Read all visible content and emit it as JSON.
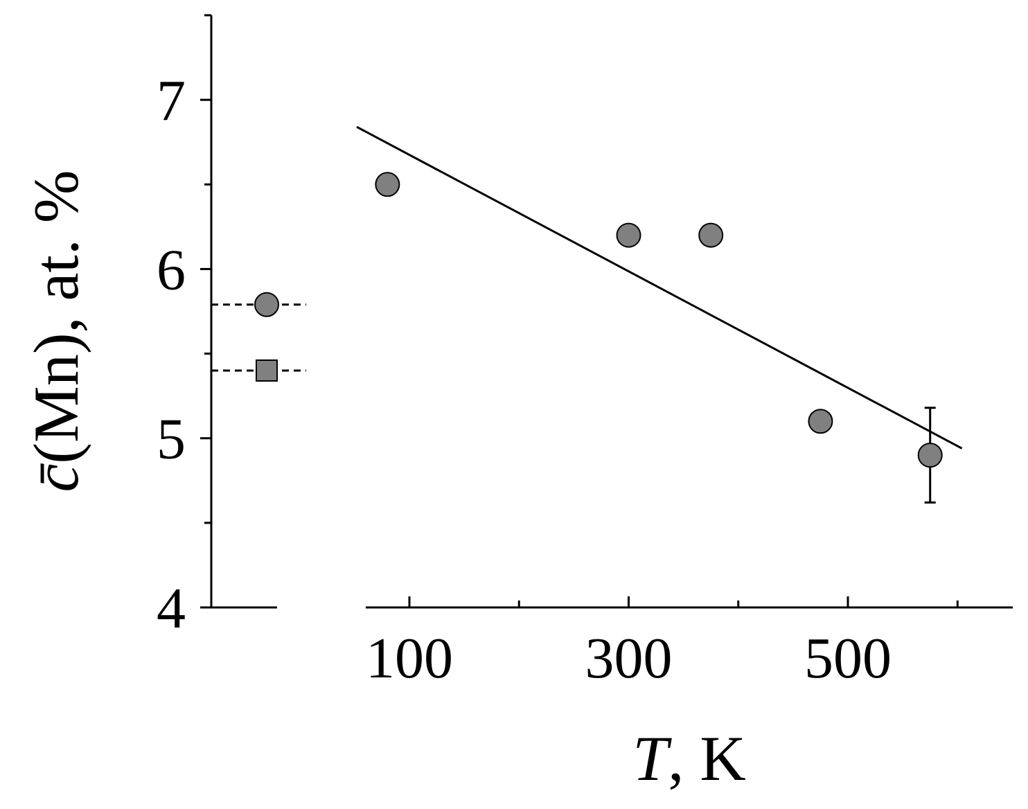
{
  "chart_data": {
    "type": "scatter",
    "y_label_symbol": "c̄",
    "y_label_rest": "(Mn), at. %",
    "x_label_symbol": "T",
    "x_label_rest": ", K",
    "x": [
      80,
      300,
      375,
      475,
      575
    ],
    "values": [
      6.5,
      6.2,
      6.2,
      5.1,
      4.9
    ],
    "errors": [
      null,
      null,
      null,
      null,
      0.28
    ],
    "color": "#808080",
    "fit": {
      "x": [
        52,
        604
      ],
      "y": [
        6.84,
        4.94
      ]
    },
    "reference": [
      {
        "marker": "circle",
        "value": 5.79
      },
      {
        "marker": "square",
        "value": 5.4
      }
    ],
    "xlim": [
      60,
      650
    ],
    "xticks": [
      100,
      300,
      500
    ],
    "xminor": [
      200,
      400,
      600
    ],
    "ylim": [
      4,
      7.5
    ],
    "yticks": [
      4,
      5,
      6,
      7
    ],
    "yminor": [
      4.5,
      5.5,
      6.5,
      7.5
    ]
  }
}
